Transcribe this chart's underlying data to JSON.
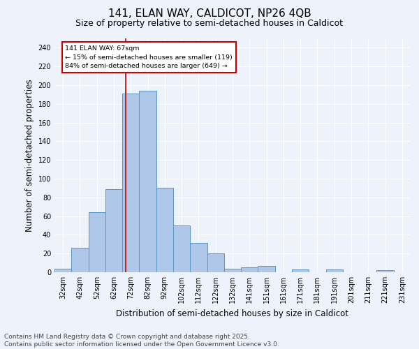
{
  "title1": "141, ELAN WAY, CALDICOT, NP26 4QB",
  "title2": "Size of property relative to semi-detached houses in Caldicot",
  "xlabel": "Distribution of semi-detached houses by size in Caldicot",
  "ylabel": "Number of semi-detached properties",
  "categories": [
    "32sqm",
    "42sqm",
    "52sqm",
    "62sqm",
    "72sqm",
    "82sqm",
    "92sqm",
    "102sqm",
    "112sqm",
    "122sqm",
    "132sqm",
    "141sqm",
    "151sqm",
    "161sqm",
    "171sqm",
    "181sqm",
    "191sqm",
    "201sqm",
    "211sqm",
    "221sqm",
    "231sqm"
  ],
  "values": [
    4,
    26,
    64,
    89,
    191,
    194,
    90,
    50,
    31,
    20,
    4,
    5,
    7,
    0,
    3,
    0,
    3,
    0,
    0,
    2,
    0
  ],
  "bar_color": "#aec6e8",
  "bar_edge_color": "#5a96c8",
  "background_color": "#eef2fb",
  "vline_color": "#cc0000",
  "annotation_text": "141 ELAN WAY: 67sqm\n← 15% of semi-detached houses are smaller (119)\n84% of semi-detached houses are larger (649) →",
  "annotation_box_color": "#ffffff",
  "annotation_box_edge": "#cc0000",
  "ylim": [
    0,
    250
  ],
  "yticks": [
    0,
    20,
    40,
    60,
    80,
    100,
    120,
    140,
    160,
    180,
    200,
    220,
    240
  ],
  "footer": "Contains HM Land Registry data © Crown copyright and database right 2025.\nContains public sector information licensed under the Open Government Licence v3.0.",
  "title_fontsize": 11,
  "subtitle_fontsize": 9,
  "axis_label_fontsize": 8.5,
  "tick_fontsize": 7,
  "footer_fontsize": 6.5
}
